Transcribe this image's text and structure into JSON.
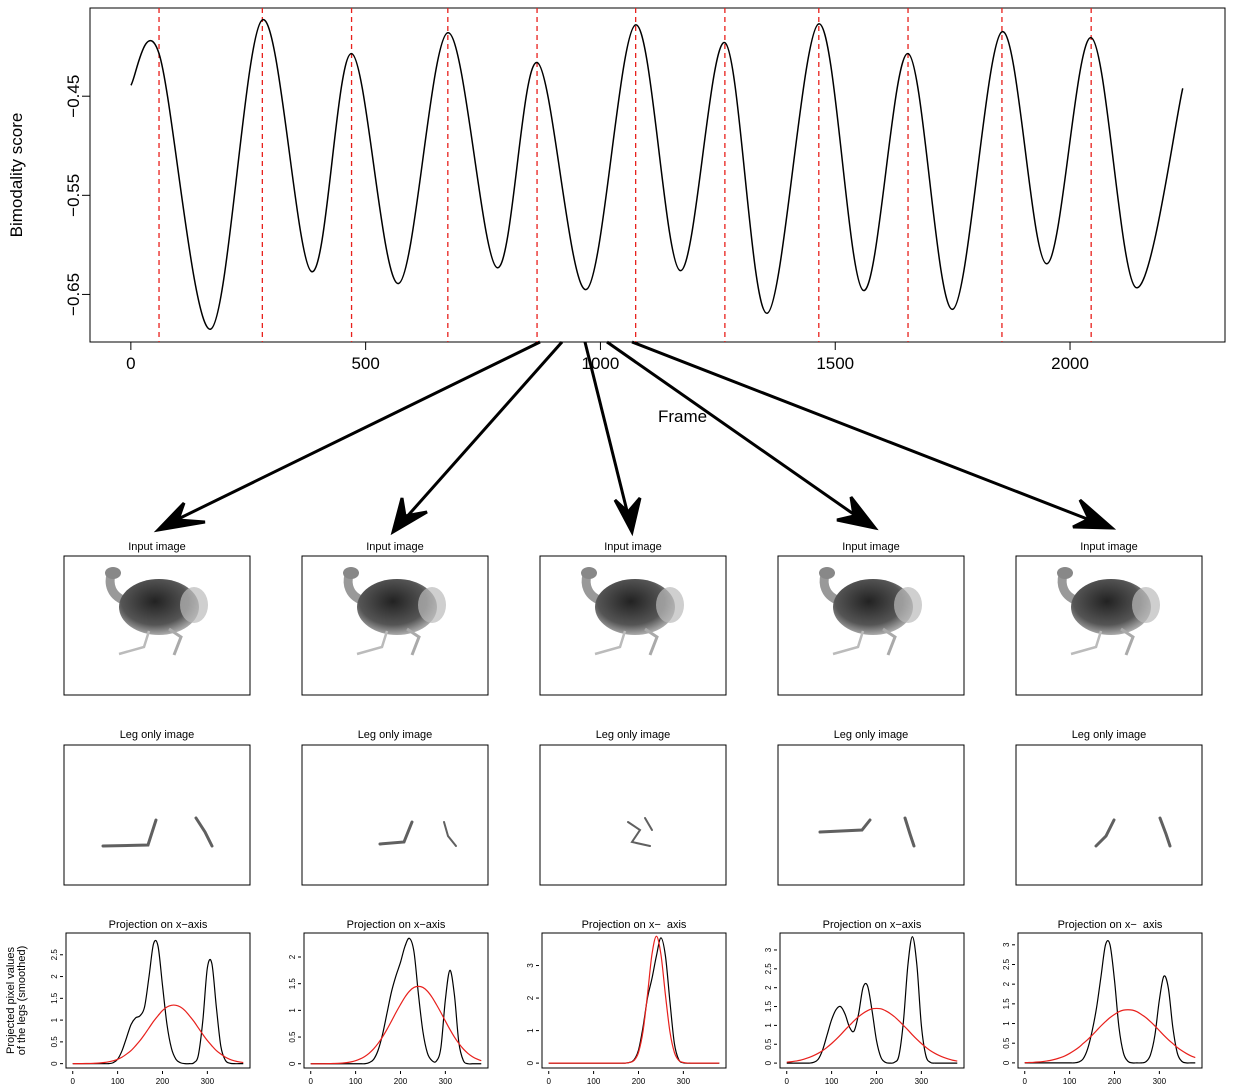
{
  "chart_data": [
    {
      "type": "line",
      "xlabel": "Frame",
      "ylabel": "Bimodality score",
      "x": [
        0,
        60,
        170,
        280,
        385,
        470,
        570,
        675,
        780,
        865,
        970,
        1075,
        1170,
        1265,
        1355,
        1465,
        1560,
        1655,
        1750,
        1855,
        1950,
        2045,
        2140,
        2240
      ],
      "series": [
        {
          "color": "#000000",
          "values": [
            -0.439,
            -0.407,
            -0.685,
            -0.373,
            -0.627,
            -0.407,
            -0.639,
            -0.386,
            -0.623,
            -0.416,
            -0.645,
            -0.378,
            -0.626,
            -0.396,
            -0.669,
            -0.377,
            -0.646,
            -0.407,
            -0.665,
            -0.385,
            -0.619,
            -0.391,
            -0.643,
            -0.442
          ]
        }
      ],
      "vlines": {
        "color": "#e8201c",
        "x": [
          60,
          280,
          470,
          675,
          865,
          1075,
          1265,
          1465,
          1655,
          1855,
          2045
        ]
      },
      "xlim": [
        -87,
        2330
      ],
      "ylim": [
        -0.698,
        -0.361
      ],
      "xticks": [
        0,
        500,
        1000,
        1500,
        2000
      ],
      "yticks": [
        {
          "value": -0.45,
          "label": "−0.45"
        },
        {
          "value": -0.55,
          "label": "−0.55"
        },
        {
          "value": -0.65,
          "label": "−0.65"
        }
      ]
    },
    {
      "type": "line",
      "title": "Projection on x−axis",
      "ylabel": [
        "Projected pixel values",
        "of the legs (smoothed)"
      ],
      "x": [
        0,
        10,
        20,
        30,
        40,
        50,
        60,
        70,
        80,
        90,
        100,
        110,
        120,
        130,
        140,
        150,
        160,
        170,
        180,
        190,
        200,
        210,
        220,
        230,
        240,
        250,
        260,
        270,
        280,
        290,
        300,
        310,
        320,
        330,
        340,
        350,
        360,
        370,
        380
      ],
      "series": [
        {
          "color": "#000000",
          "values": [
            0,
            0,
            0,
            0,
            0,
            0,
            0,
            0,
            0,
            0.02,
            0.1,
            0.3,
            0.6,
            0.9,
            1.05,
            1.1,
            1.3,
            2.0,
            2.75,
            2.7,
            1.8,
            0.9,
            0.35,
            0.1,
            0.02,
            0,
            0,
            0.02,
            0.2,
            1.0,
            2.2,
            2.3,
            1.3,
            0.4,
            0.08,
            0.01,
            0,
            0,
            0
          ]
        },
        {
          "color": "#e8201c",
          "values": [
            0,
            0,
            0.001,
            0.003,
            0.005,
            0.009,
            0.015,
            0.026,
            0.042,
            0.066,
            0.1,
            0.15,
            0.22,
            0.3,
            0.41,
            0.53,
            0.67,
            0.82,
            0.97,
            1.1,
            1.22,
            1.3,
            1.34,
            1.34,
            1.3,
            1.22,
            1.1,
            0.97,
            0.82,
            0.67,
            0.53,
            0.41,
            0.3,
            0.22,
            0.15,
            0.1,
            0.066,
            0.042,
            0.026
          ]
        }
      ],
      "xlim": [
        -15,
        395
      ],
      "ylim": [
        -0.1,
        3.0
      ],
      "xticks": [
        0,
        100,
        200,
        300
      ],
      "yticks": [
        0.0,
        0.5,
        1.0,
        1.5,
        2.0,
        2.5
      ]
    },
    {
      "type": "line",
      "title": "Projection on x−axis",
      "x": [
        0,
        10,
        20,
        30,
        40,
        50,
        60,
        70,
        80,
        90,
        100,
        110,
        120,
        130,
        140,
        150,
        160,
        170,
        180,
        190,
        200,
        210,
        220,
        230,
        240,
        250,
        260,
        270,
        280,
        290,
        300,
        310,
        320,
        330,
        340,
        350,
        360,
        370,
        380
      ],
      "series": [
        {
          "color": "#000000",
          "values": [
            0,
            0,
            0,
            0,
            0,
            0,
            0,
            0,
            0,
            0,
            0,
            0,
            0,
            0.02,
            0.08,
            0.25,
            0.55,
            0.95,
            1.35,
            1.65,
            1.9,
            2.2,
            2.35,
            2.1,
            1.3,
            0.6,
            0.2,
            0.06,
            0.05,
            0.3,
            1.2,
            1.75,
            1.3,
            0.4,
            0.06,
            0,
            0,
            0,
            0
          ]
        },
        {
          "color": "#e8201c",
          "values": [
            0,
            0,
            0,
            0,
            0.002,
            0.004,
            0.007,
            0.012,
            0.021,
            0.035,
            0.057,
            0.089,
            0.134,
            0.196,
            0.277,
            0.38,
            0.503,
            0.645,
            0.8,
            0.96,
            1.11,
            1.25,
            1.36,
            1.43,
            1.45,
            1.43,
            1.36,
            1.25,
            1.11,
            0.96,
            0.8,
            0.645,
            0.503,
            0.38,
            0.277,
            0.196,
            0.134,
            0.089,
            0.057
          ]
        }
      ],
      "xlim": [
        -15,
        395
      ],
      "ylim": [
        -0.08,
        2.45
      ],
      "xticks": [
        0,
        100,
        200,
        300
      ],
      "yticks": [
        0.0,
        0.5,
        1.0,
        1.5,
        2.0
      ]
    },
    {
      "type": "line",
      "title": "Projection on x−  axis",
      "x": [
        0,
        10,
        20,
        30,
        40,
        50,
        60,
        70,
        80,
        90,
        100,
        110,
        120,
        130,
        140,
        150,
        160,
        170,
        180,
        190,
        200,
        210,
        220,
        230,
        240,
        250,
        260,
        270,
        280,
        290,
        300,
        310,
        320,
        330,
        340,
        350,
        360,
        370,
        380
      ],
      "series": [
        {
          "color": "#000000",
          "values": [
            0,
            0,
            0,
            0,
            0,
            0,
            0,
            0,
            0,
            0,
            0,
            0,
            0,
            0,
            0,
            0,
            0,
            0,
            0.02,
            0.1,
            0.4,
            1.1,
            2.0,
            2.6,
            3.3,
            3.85,
            3.3,
            1.9,
            0.6,
            0.1,
            0.01,
            0,
            0,
            0,
            0,
            0,
            0,
            0,
            0
          ]
        },
        {
          "color": "#e8201c",
          "values": [
            0,
            0,
            0,
            0,
            0,
            0,
            0,
            0,
            0,
            0,
            0,
            0,
            0,
            0,
            0,
            0,
            0,
            0,
            0.02,
            0.08,
            0.33,
            0.97,
            2.1,
            3.34,
            3.9,
            3.34,
            2.1,
            0.97,
            0.33,
            0.08,
            0.02,
            0,
            0,
            0,
            0,
            0,
            0,
            0,
            0
          ]
        }
      ],
      "xlim": [
        -15,
        395
      ],
      "ylim": [
        -0.15,
        4.0
      ],
      "xticks": [
        0,
        100,
        200,
        300
      ],
      "yticks": [
        0.0,
        1.0,
        2.0,
        3.0
      ]
    },
    {
      "type": "line",
      "title": "Projection on x−axis",
      "x": [
        0,
        10,
        20,
        30,
        40,
        50,
        60,
        70,
        80,
        90,
        100,
        110,
        120,
        130,
        140,
        150,
        160,
        170,
        180,
        190,
        200,
        210,
        220,
        230,
        240,
        250,
        260,
        270,
        280,
        290,
        300,
        310,
        320,
        330,
        340,
        350,
        360,
        370,
        380
      ],
      "series": [
        {
          "color": "#000000",
          "values": [
            0,
            0,
            0,
            0,
            0,
            0,
            0.02,
            0.1,
            0.35,
            0.75,
            1.15,
            1.42,
            1.5,
            1.3,
            0.95,
            0.85,
            1.3,
            2.0,
            2.05,
            1.4,
            0.6,
            0.15,
            0.02,
            0,
            0.02,
            0.2,
            1.1,
            2.6,
            3.35,
            2.6,
            1.0,
            0.2,
            0.02,
            0,
            0,
            0,
            0,
            0,
            0
          ]
        },
        {
          "color": "#e8201c",
          "values": [
            0.025,
            0.036,
            0.054,
            0.075,
            0.11,
            0.15,
            0.2,
            0.26,
            0.33,
            0.42,
            0.52,
            0.63,
            0.75,
            0.88,
            1.0,
            1.12,
            1.23,
            1.32,
            1.39,
            1.44,
            1.45,
            1.44,
            1.39,
            1.32,
            1.23,
            1.12,
            1.0,
            0.88,
            0.75,
            0.63,
            0.52,
            0.42,
            0.33,
            0.26,
            0.2,
            0.15,
            0.11,
            0.075,
            0.054
          ]
        }
      ],
      "xlim": [
        -15,
        395
      ],
      "ylim": [
        -0.13,
        3.45
      ],
      "xticks": [
        0,
        100,
        200,
        300
      ],
      "yticks": [
        0.0,
        0.5,
        1.0,
        1.5,
        2.0,
        2.5,
        3.0
      ]
    },
    {
      "type": "line",
      "title": "Projection on x−  axis",
      "x": [
        0,
        10,
        20,
        30,
        40,
        50,
        60,
        70,
        80,
        90,
        100,
        110,
        120,
        130,
        140,
        150,
        160,
        170,
        180,
        190,
        200,
        210,
        220,
        230,
        240,
        250,
        260,
        270,
        280,
        290,
        300,
        310,
        320,
        330,
        340,
        350,
        360,
        370,
        380
      ],
      "series": [
        {
          "color": "#000000",
          "values": [
            0,
            0,
            0,
            0,
            0,
            0,
            0,
            0,
            0,
            0,
            0,
            0,
            0.02,
            0.1,
            0.35,
            0.8,
            1.4,
            2.2,
            3.0,
            3.0,
            2.1,
            0.9,
            0.25,
            0.04,
            0,
            0,
            0,
            0.03,
            0.2,
            0.7,
            1.6,
            2.2,
            1.9,
            0.9,
            0.25,
            0.04,
            0,
            0,
            0
          ]
        },
        {
          "color": "#e8201c",
          "values": [
            0.006,
            0.01,
            0.015,
            0.023,
            0.034,
            0.05,
            0.07,
            0.099,
            0.135,
            0.18,
            0.24,
            0.31,
            0.39,
            0.49,
            0.59,
            0.7,
            0.82,
            0.94,
            1.05,
            1.15,
            1.23,
            1.3,
            1.34,
            1.35,
            1.34,
            1.3,
            1.23,
            1.15,
            1.05,
            0.94,
            0.82,
            0.7,
            0.59,
            0.49,
            0.39,
            0.31,
            0.24,
            0.18,
            0.135
          ]
        }
      ],
      "xlim": [
        -15,
        395
      ],
      "ylim": [
        -0.13,
        3.3
      ],
      "xticks": [
        0,
        100,
        200,
        300
      ],
      "yticks": [
        0.0,
        0.5,
        1.0,
        1.5,
        2.0,
        2.5,
        3.0
      ]
    }
  ],
  "panels": [
    {
      "input_title": "Input image",
      "leg_title": "Leg only image"
    },
    {
      "input_title": "Input image",
      "leg_title": "Leg only image"
    },
    {
      "input_title": "Input image",
      "leg_title": "Leg only image"
    },
    {
      "input_title": "Input image",
      "leg_title": "Leg only image"
    },
    {
      "input_title": "Input image",
      "leg_title": "Leg only image"
    }
  ]
}
